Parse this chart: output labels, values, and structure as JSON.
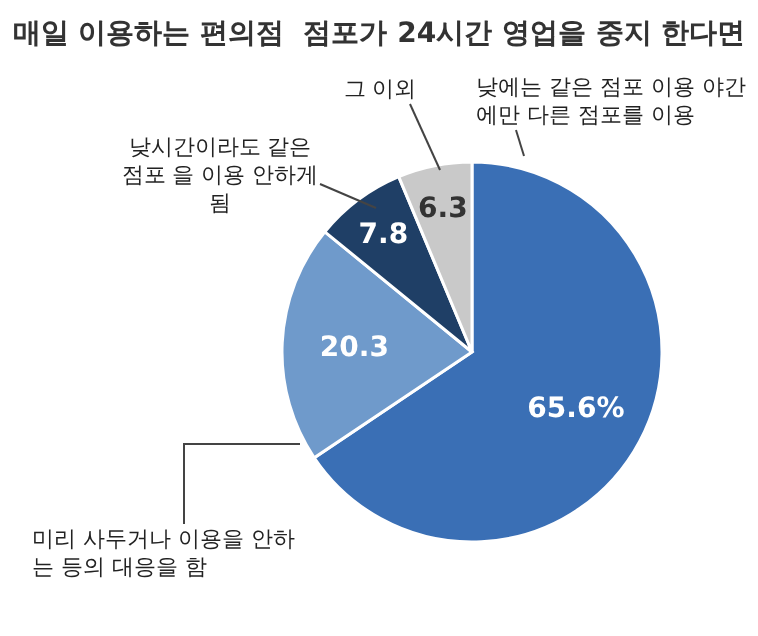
{
  "chart_data": {
    "type": "pie",
    "title": "매일 이용하는 편의점  점포가 24시간 영업을 중지 한다면",
    "categories": [
      "낮에는 같은 점포 이용 야간에만 다른 점포를 이용",
      "미리 사두거나 이용을 안하는 등의 대응을 함",
      "낮시간이라도 같은 점포 을 이용 안하게 됨",
      "그 이외"
    ],
    "values": [
      65.6,
      20.3,
      7.8,
      6.3
    ],
    "colors": [
      "#3a6fb5",
      "#6f9acb",
      "#1f3f66",
      "#c9c9c9"
    ],
    "value_labels": [
      "65.6%",
      "20.3",
      "7.8",
      "6.3"
    ]
  }
}
